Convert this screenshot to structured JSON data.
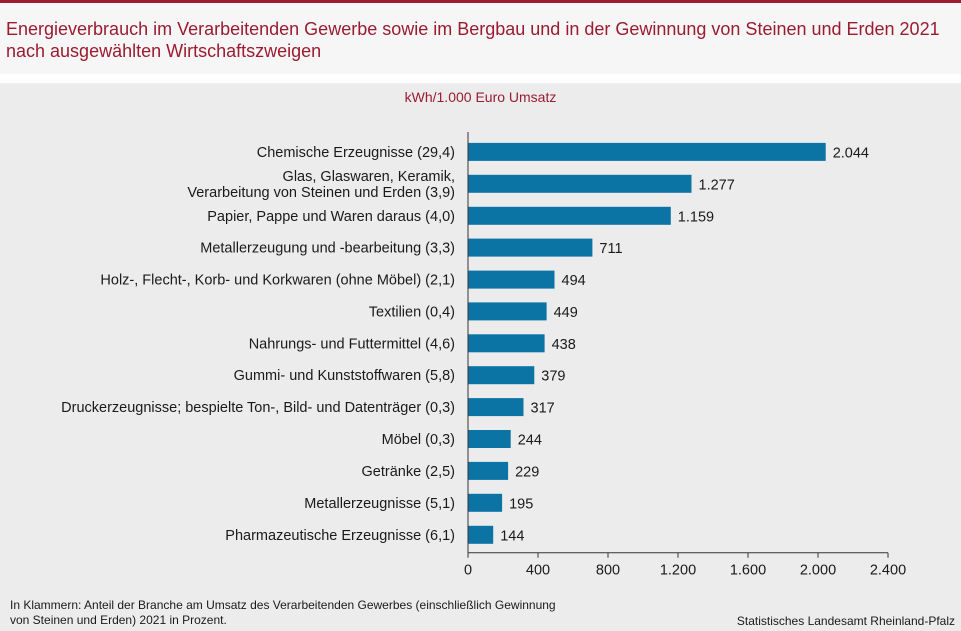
{
  "title": "Energieverbrauch im Verarbeitenden Gewerbe sowie im Bergbau und in der Gewinnung von Steinen und Erden 2021 nach ausgewählten Wirtschaftszweigen",
  "footnote": "In Klammern: Anteil der Branche am Umsatz des Verarbeitenden Gewerbes (einschließlich Gewinnung von Steinen und Erden) 2021 in Prozent.",
  "source": "Statistisches Landesamt Rheinland-Pfalz",
  "colors": {
    "bar": "#0b74a5",
    "title": "#9b1b30",
    "background": "#ececec"
  },
  "chart_data": {
    "type": "bar",
    "orientation": "horizontal",
    "unit_label": "kWh/1.000  Euro Umsatz",
    "categories": [
      [
        "Chemische Erzeugnisse (29,4)"
      ],
      [
        "Glas, Glaswaren, Keramik,",
        "Verarbeitung von Steinen und Erden (3,9)"
      ],
      [
        "Papier, Pappe und Waren daraus (4,0)"
      ],
      [
        "Metallerzeugung und -bearbeitung (3,3)"
      ],
      [
        "Holz-, Flecht-, Korb- und Korkwaren (ohne Möbel) (2,1)"
      ],
      [
        "Textilien (0,4)"
      ],
      [
        "Nahrungs- und Futtermittel (4,6)"
      ],
      [
        "Gummi- und Kunststoffwaren (5,8)"
      ],
      [
        "Druckerzeugnisse; bespielte Ton-, Bild- und Datenträger (0,3)"
      ],
      [
        "Möbel (0,3)"
      ],
      [
        "Getränke (2,5)"
      ],
      [
        "Metallerzeugnisse (5,1)"
      ],
      [
        "Pharmazeutische Erzeugnisse (6,1)"
      ]
    ],
    "values": [
      2044,
      1277,
      1159,
      711,
      494,
      449,
      438,
      379,
      317,
      244,
      229,
      195,
      144
    ],
    "value_labels": [
      "2.044",
      "1.277",
      "1.159",
      "711",
      "494",
      "449",
      "438",
      "379",
      "317",
      "244",
      "229",
      "195",
      "144"
    ],
    "xlim": [
      0,
      2400
    ],
    "ticks": [
      0,
      400,
      800,
      1200,
      1600,
      2000,
      2400
    ],
    "tick_labels": [
      "0",
      "400",
      "800",
      "1.200",
      "1.600",
      "2.000",
      "2.400"
    ],
    "grid": false,
    "legend": "none"
  }
}
